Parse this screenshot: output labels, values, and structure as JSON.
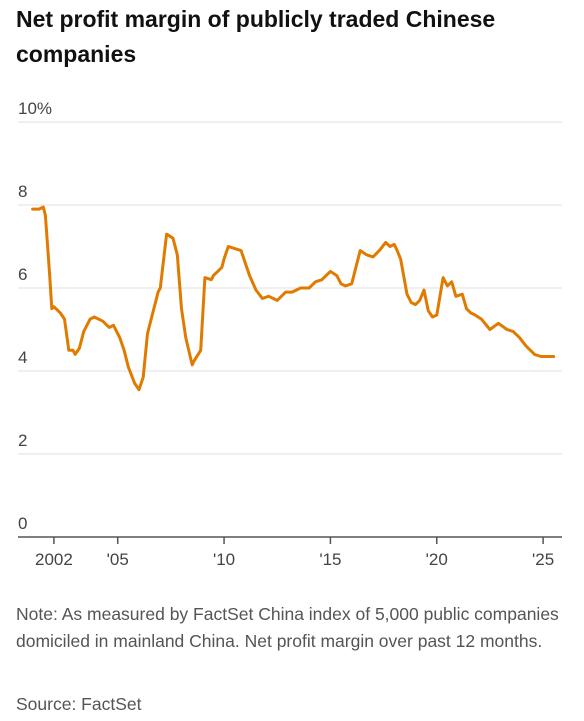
{
  "chart_data": {
    "type": "line",
    "title": "Net profit margin of publicly traded Chinese companies",
    "y_ticks": [
      {
        "value": 10,
        "label": "10%"
      },
      {
        "value": 8,
        "label": "8"
      },
      {
        "value": 6,
        "label": "6"
      },
      {
        "value": 4,
        "label": "4"
      },
      {
        "value": 2,
        "label": "2"
      },
      {
        "value": 0,
        "label": "0"
      }
    ],
    "x_ticks": [
      {
        "value": 2002,
        "label": "2002"
      },
      {
        "value": 2005,
        "label": "'05"
      },
      {
        "value": 2010,
        "label": "'10"
      },
      {
        "value": 2015,
        "label": "'15"
      },
      {
        "value": 2020,
        "label": "'20"
      },
      {
        "value": 2025,
        "label": "'25"
      }
    ],
    "xlim": [
      2000.5,
      2025.7
    ],
    "ylim": [
      0,
      10
    ],
    "grid": true,
    "color": "#e07b00",
    "x": [
      2001.0,
      2001.3,
      2001.5,
      2001.6,
      2001.8,
      2001.9,
      2002.0,
      2002.3,
      2002.5,
      2002.7,
      2002.9,
      2003.0,
      2003.2,
      2003.4,
      2003.7,
      2003.9,
      2004.3,
      2004.6,
      2004.8,
      2005.1,
      2005.3,
      2005.5,
      2005.8,
      2006.0,
      2006.2,
      2006.4,
      2006.6,
      2006.8,
      2006.9,
      2007.0,
      2007.3,
      2007.6,
      2007.8,
      2008.0,
      2008.2,
      2008.5,
      2008.6,
      2008.9,
      2009.1,
      2009.4,
      2009.5,
      2009.7,
      2009.9,
      2010.0,
      2010.2,
      2010.5,
      2010.8,
      2011.0,
      2011.2,
      2011.5,
      2011.8,
      2012.1,
      2012.5,
      2012.9,
      2013.2,
      2013.6,
      2014.0,
      2014.3,
      2014.6,
      2015.0,
      2015.3,
      2015.5,
      2015.7,
      2016.0,
      2016.4,
      2016.7,
      2017.0,
      2017.3,
      2017.6,
      2017.8,
      2018.0,
      2018.1,
      2018.3,
      2018.6,
      2018.8,
      2019.0,
      2019.2,
      2019.4,
      2019.6,
      2019.8,
      2020.0,
      2020.3,
      2020.5,
      2020.7,
      2020.9,
      2021.2,
      2021.4,
      2021.6,
      2021.8,
      2022.1,
      2022.5,
      2022.9,
      2023.3,
      2023.6,
      2023.9,
      2024.2,
      2024.6,
      2024.9,
      2025.2,
      2025.5
    ],
    "y": [
      7.9,
      7.9,
      7.95,
      7.75,
      6.3,
      5.5,
      5.55,
      5.4,
      5.25,
      4.5,
      4.5,
      4.4,
      4.55,
      4.95,
      5.25,
      5.3,
      5.2,
      5.05,
      5.1,
      4.8,
      4.5,
      4.1,
      3.7,
      3.55,
      3.85,
      4.9,
      5.3,
      5.7,
      5.9,
      6.0,
      7.3,
      7.2,
      6.8,
      5.5,
      4.8,
      4.15,
      4.25,
      4.5,
      6.25,
      6.2,
      6.3,
      6.4,
      6.5,
      6.7,
      7.0,
      6.95,
      6.9,
      6.6,
      6.3,
      5.95,
      5.75,
      5.8,
      5.7,
      5.9,
      5.9,
      6.0,
      6.0,
      6.15,
      6.2,
      6.4,
      6.3,
      6.1,
      6.05,
      6.1,
      6.9,
      6.8,
      6.75,
      6.9,
      7.1,
      7.0,
      7.05,
      6.95,
      6.7,
      5.85,
      5.65,
      5.6,
      5.7,
      5.95,
      5.45,
      5.3,
      5.35,
      6.25,
      6.05,
      6.15,
      5.8,
      5.85,
      5.5,
      5.4,
      5.35,
      5.25,
      5.0,
      5.15,
      5.0,
      4.95,
      4.8,
      4.6,
      4.4,
      4.35,
      4.35,
      4.35
    ]
  },
  "note": "Note: As measured by FactSet China index of 5,000 public companies domiciled in mainland China. Net profit margin over past 12 months.",
  "source": "Source: FactSet"
}
